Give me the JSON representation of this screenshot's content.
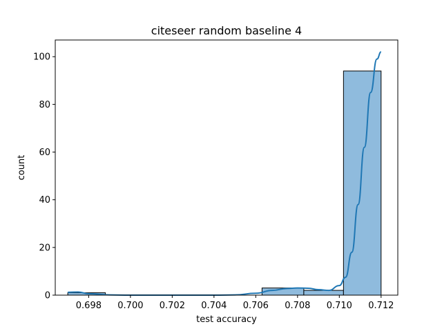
{
  "chart_data": {
    "type": "bar",
    "title": "citeseer random baseline 4",
    "xlabel": "test accuracy",
    "ylabel": "count",
    "xlim": [
      0.6964,
      0.7128
    ],
    "ylim": [
      0,
      107
    ],
    "x_ticks": [
      0.698,
      0.7,
      0.702,
      0.704,
      0.706,
      0.708,
      0.71,
      0.712
    ],
    "x_tick_labels": [
      "0.698",
      "0.700",
      "0.702",
      "0.704",
      "0.706",
      "0.708",
      "0.710",
      "0.712"
    ],
    "y_ticks": [
      0,
      20,
      40,
      60,
      80,
      100
    ],
    "y_tick_labels": [
      "0",
      "20",
      "40",
      "60",
      "80",
      "100"
    ],
    "bins": [
      {
        "x0": 0.697,
        "x1": 0.6988,
        "count": 1
      },
      {
        "x0": 0.6988,
        "x1": 0.7007,
        "count": 0
      },
      {
        "x0": 0.7007,
        "x1": 0.7025,
        "count": 0
      },
      {
        "x0": 0.7025,
        "x1": 0.7043,
        "count": 0
      },
      {
        "x0": 0.7043,
        "x1": 0.7063,
        "count": 0
      },
      {
        "x0": 0.7063,
        "x1": 0.7083,
        "count": 3
      },
      {
        "x0": 0.7083,
        "x1": 0.7102,
        "count": 2
      },
      {
        "x0": 0.7102,
        "x1": 0.712,
        "count": 94
      }
    ],
    "kde": {
      "x": [
        0.697,
        0.6975,
        0.698,
        0.699,
        0.7,
        0.702,
        0.704,
        0.705,
        0.706,
        0.7068,
        0.7075,
        0.708,
        0.7085,
        0.709,
        0.7095,
        0.71,
        0.7103,
        0.7106,
        0.7109,
        0.7112,
        0.7115,
        0.7118,
        0.712
      ],
      "y": [
        1.2,
        1.3,
        0.6,
        0.1,
        0.0,
        0.0,
        0.0,
        0.1,
        0.8,
        2.0,
        2.8,
        3.0,
        2.9,
        2.3,
        2.0,
        4.0,
        7.5,
        18,
        38,
        62,
        85,
        99,
        102
      ]
    },
    "grid": false,
    "colors": {
      "bar_fill": "#8fbbdd",
      "bar_edge": "#000000",
      "kde_line": "#1f77b4"
    }
  }
}
